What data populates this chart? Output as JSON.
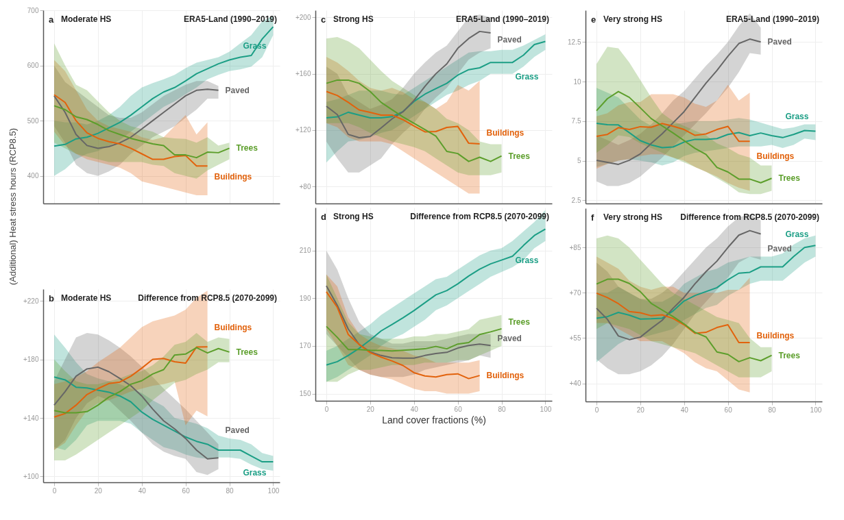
{
  "chart_data": [
    {
      "type": "line",
      "title": "Moderate HS",
      "subtitle": "ERA5-Land (1990–2019)",
      "annotations": [
        "a"
      ],
      "ylabel": "(Additional) Heat stress hours (RCP8.5)",
      "xlim": [
        -5,
        103
      ],
      "xticks": [
        0,
        20,
        40,
        60,
        80,
        100
      ],
      "ylim": [
        350,
        700
      ],
      "yticks": [
        400,
        500,
        600,
        700
      ],
      "grid": true,
      "tick_labels": "y",
      "series": [
        {
          "name": "Grass",
          "color": "#1b9e85",
          "x": [
            0,
            5,
            10,
            15,
            20,
            25,
            30,
            35,
            40,
            45,
            50,
            55,
            60,
            65,
            70,
            75,
            80,
            85,
            90,
            95,
            100
          ],
          "values": [
            454,
            457,
            467,
            470,
            477,
            487,
            497,
            510,
            525,
            540,
            552,
            560,
            572,
            585,
            594,
            603,
            610,
            615,
            618,
            648,
            670
          ],
          "lower": [
            400,
            412,
            430,
            440,
            445,
            455,
            465,
            480,
            495,
            510,
            525,
            535,
            548,
            560,
            575,
            583,
            590,
            593,
            598,
            615,
            655
          ],
          "upper": [
            500,
            497,
            497,
            493,
            500,
            510,
            525,
            545,
            560,
            568,
            575,
            583,
            595,
            605,
            610,
            615,
            625,
            640,
            655,
            680,
            690
          ]
        },
        {
          "name": "Paved",
          "color": "#666666",
          "x": [
            0,
            5,
            10,
            15,
            20,
            25,
            30,
            35,
            40,
            45,
            50,
            55,
            60,
            65,
            70,
            75
          ],
          "values": [
            545,
            515,
            475,
            455,
            450,
            453,
            460,
            470,
            485,
            500,
            515,
            530,
            545,
            555,
            557,
            555
          ],
          "lower": [
            490,
            460,
            420,
            405,
            400,
            408,
            420,
            440,
            455,
            470,
            480,
            490,
            505,
            520,
            540,
            540
          ],
          "upper": [
            600,
            570,
            555,
            540,
            525,
            510,
            505,
            505,
            515,
            530,
            545,
            555,
            565,
            572,
            572,
            563
          ]
        },
        {
          "name": "Buildings",
          "color": "#e2620c",
          "x": [
            0,
            5,
            10,
            15,
            20,
            25,
            30,
            35,
            40,
            45,
            50,
            55,
            60,
            65,
            70
          ],
          "values": [
            547,
            533,
            500,
            478,
            468,
            462,
            458,
            450,
            440,
            430,
            430,
            435,
            437,
            418,
            418
          ],
          "lower": [
            480,
            455,
            440,
            430,
            425,
            420,
            415,
            405,
            390,
            385,
            380,
            375,
            370,
            365,
            365
          ],
          "upper": [
            610,
            590,
            555,
            520,
            500,
            490,
            485,
            480,
            470,
            465,
            470,
            490,
            510,
            475,
            497
          ]
        },
        {
          "name": "Trees",
          "color": "#5c9e2b",
          "x": [
            0,
            5,
            10,
            15,
            20,
            25,
            30,
            35,
            40,
            45,
            50,
            55,
            60,
            65,
            70,
            75,
            80
          ],
          "values": [
            527,
            520,
            507,
            502,
            493,
            482,
            475,
            468,
            463,
            458,
            455,
            438,
            438,
            433,
            443,
            442,
            450
          ],
          "lower": [
            460,
            450,
            440,
            435,
            430,
            425,
            425,
            425,
            425,
            420,
            418,
            405,
            400,
            395,
            410,
            420,
            430
          ],
          "upper": [
            640,
            600,
            565,
            555,
            535,
            515,
            500,
            490,
            485,
            480,
            470,
            468,
            467,
            460,
            470,
            455,
            460
          ]
        }
      ]
    },
    {
      "type": "line",
      "title": "Moderate HS",
      "subtitle": "Difference from RCP8.5 (2070-2099)",
      "annotations": [
        "b"
      ],
      "xlim": [
        -5,
        103
      ],
      "xticks": [
        0,
        20,
        40,
        60,
        80,
        100
      ],
      "ylim": [
        96,
        228
      ],
      "yticks": [
        {
          "value": 100,
          "label": "+100"
        },
        {
          "value": 140,
          "label": "+140"
        },
        {
          "value": 180,
          "label": "+180"
        },
        {
          "value": 220,
          "label": "+220"
        }
      ],
      "grid": true,
      "series": [
        {
          "name": "Grass",
          "color": "#1b9e85",
          "x": [
            0,
            5,
            10,
            15,
            20,
            25,
            30,
            35,
            40,
            45,
            50,
            55,
            60,
            65,
            70,
            75,
            80,
            85,
            90,
            95,
            100
          ],
          "values": [
            168,
            166,
            161,
            160.5,
            159,
            157.6,
            155,
            151,
            144,
            139,
            135,
            131,
            127,
            124,
            122,
            118,
            118,
            118,
            114,
            110,
            110
          ],
          "lower": [
            120,
            118,
            125,
            135,
            138,
            138,
            138,
            136,
            130,
            125,
            120,
            118,
            115,
            113,
            112,
            113,
            113,
            112,
            108,
            105,
            104
          ],
          "upper": [
            197,
            188,
            178,
            170,
            167,
            165,
            163,
            160,
            157,
            152,
            148,
            140,
            138,
            136,
            133,
            128,
            126,
            125,
            122,
            116,
            114
          ]
        },
        {
          "name": "Paved",
          "color": "#666666",
          "x": [
            0,
            5,
            10,
            15,
            20,
            25,
            30,
            35,
            40,
            45,
            50,
            55,
            60,
            65,
            70,
            75
          ],
          "values": [
            148.7,
            158,
            168.5,
            173.5,
            174.7,
            171.6,
            167,
            162,
            155,
            146,
            138,
            132.5,
            126,
            118,
            112,
            112.7
          ],
          "lower": [
            118,
            125,
            140,
            150,
            155,
            152,
            145,
            138,
            130,
            122,
            117,
            114,
            112,
            103,
            101,
            105
          ],
          "upper": [
            165,
            180,
            195,
            198,
            197,
            193,
            188,
            182,
            175,
            168,
            160,
            153,
            146,
            138,
            130,
            122
          ]
        },
        {
          "name": "Buildings",
          "color": "#e2620c",
          "x": [
            0,
            5,
            10,
            15,
            20,
            25,
            30,
            35,
            40,
            45,
            50,
            55,
            60,
            65,
            70
          ],
          "values": [
            140.6,
            143,
            148.7,
            156,
            160,
            163.5,
            164.5,
            168.5,
            174,
            180,
            180.6,
            178.4,
            177.4,
            188.4,
            188.6
          ],
          "lower": [
            118,
            123,
            135,
            145,
            150,
            152,
            155,
            158,
            160,
            162,
            163,
            165,
            135,
            145,
            141
          ],
          "upper": [
            163,
            165,
            168,
            172,
            178,
            183,
            188,
            195,
            202,
            206,
            208,
            210,
            214,
            222,
            227
          ]
        },
        {
          "name": "Trees",
          "color": "#5c9e2b",
          "x": [
            0,
            5,
            10,
            15,
            20,
            25,
            30,
            35,
            40,
            45,
            50,
            55,
            60,
            65,
            70,
            75,
            80
          ],
          "values": [
            145,
            143.5,
            143.5,
            144.3,
            148.7,
            154.2,
            158,
            163,
            165.4,
            170,
            173,
            183,
            183.6,
            188,
            184.4,
            187.4,
            185
          ],
          "lower": [
            111,
            111,
            115,
            120,
            125,
            130,
            135,
            140,
            145,
            152,
            158,
            164,
            166,
            170,
            173,
            178,
            178
          ],
          "upper": [
            180,
            172,
            165,
            163,
            163,
            165,
            167,
            170,
            172,
            176,
            182,
            190,
            192,
            198,
            192,
            195,
            194
          ]
        }
      ]
    },
    {
      "type": "line",
      "title": "Strong HS",
      "subtitle": "ERA5-Land (1990–2019)",
      "annotations": [
        "c"
      ],
      "xlim": [
        -5,
        103
      ],
      "xticks": [
        0,
        20,
        40,
        60,
        80,
        100
      ],
      "ylim": [
        68,
        205
      ],
      "yticks": [
        {
          "value": 80,
          "label": "+80"
        },
        {
          "value": 120,
          "label": "+120"
        },
        {
          "value": 160,
          "label": "+160"
        },
        {
          "value": 200,
          "label": "+200"
        }
      ],
      "grid": true,
      "tick_labels": "y",
      "series": [
        {
          "name": "Grass",
          "color": "#1b9e85",
          "x": [
            0,
            5,
            10,
            15,
            20,
            25,
            30,
            35,
            40,
            45,
            50,
            55,
            60,
            65,
            70,
            75,
            80,
            85,
            90,
            95,
            100
          ],
          "values": [
            128.7,
            129.4,
            132.7,
            130.7,
            128.7,
            128.7,
            129.6,
            133.2,
            140.3,
            145.5,
            149.4,
            153.2,
            159,
            162.9,
            164.2,
            168,
            168,
            168,
            173.2,
            180.7,
            182.9
          ],
          "lower": [
            97,
            105,
            112,
            113,
            115,
            118,
            120,
            125,
            130,
            135,
            140,
            145,
            148,
            152,
            155,
            160,
            160,
            160,
            165,
            172,
            177
          ],
          "upper": [
            140,
            142,
            145,
            148,
            148,
            148,
            146,
            145,
            150,
            155,
            160,
            165,
            170,
            175,
            176,
            176,
            177,
            177,
            180,
            184,
            188
          ]
        },
        {
          "name": "Paved",
          "color": "#666666",
          "x": [
            0,
            5,
            10,
            15,
            20,
            25,
            30,
            35,
            40,
            45,
            50,
            55,
            60,
            65,
            70,
            75
          ],
          "values": [
            137,
            131,
            117,
            114.6,
            115.5,
            121.6,
            128,
            133,
            141,
            151,
            160,
            167,
            178,
            185,
            190,
            189
          ],
          "lower": [
            112,
            100,
            90,
            90,
            95,
            100,
            110,
            118,
            125,
            135,
            143,
            150,
            160,
            170,
            175,
            178
          ],
          "upper": [
            165,
            160,
            145,
            140,
            135,
            138,
            142,
            150,
            160,
            168,
            175,
            180,
            190,
            200,
            202,
            200
          ]
        },
        {
          "name": "Buildings",
          "color": "#e2620c",
          "x": [
            0,
            5,
            10,
            15,
            20,
            25,
            30,
            35,
            40,
            45,
            50,
            55,
            60,
            65,
            70
          ],
          "values": [
            147.4,
            144.6,
            139.7,
            134.3,
            132.6,
            130.7,
            130.7,
            127.4,
            123,
            118.8,
            119,
            121.9,
            122.7,
            110.7,
            110.3
          ],
          "lower": [
            125,
            122,
            115,
            112,
            112,
            112,
            110,
            105,
            100,
            95,
            90,
            85,
            80,
            75,
            75
          ],
          "upper": [
            172,
            168,
            162,
            155,
            150,
            148,
            150,
            147,
            142,
            140,
            135,
            140,
            152,
            148,
            155
          ]
        },
        {
          "name": "Trees",
          "color": "#5c9e2b",
          "x": [
            0,
            5,
            10,
            15,
            20,
            25,
            30,
            35,
            40,
            45,
            50,
            55,
            60,
            65,
            70,
            75,
            80
          ],
          "values": [
            153.2,
            155.5,
            155.5,
            153.2,
            147.4,
            139.7,
            134.5,
            129.4,
            124.9,
            120.4,
            115.8,
            104.9,
            103.4,
            97.8,
            100.8,
            97.8,
            101.7
          ],
          "lower": [
            125,
            125,
            125,
            122,
            118,
            115,
            112,
            110,
            108,
            105,
            100,
            95,
            90,
            88,
            88,
            88,
            90
          ],
          "upper": [
            185,
            186,
            183,
            178,
            170,
            162,
            155,
            150,
            145,
            140,
            135,
            128,
            125,
            120,
            112,
            110,
            110
          ]
        }
      ]
    },
    {
      "type": "line",
      "title": "Strong HS",
      "subtitle": "Difference from RCP8.5 (2070-2099)",
      "annotations": [
        "d"
      ],
      "xlabel": "Land cover fractions (%)",
      "xlim": [
        -5,
        103
      ],
      "xticks": [
        0,
        20,
        40,
        60,
        80,
        100
      ],
      "ylim": [
        147,
        228
      ],
      "yticks": [
        150,
        170,
        190,
        210
      ],
      "grid": true,
      "series": [
        {
          "name": "Grass",
          "color": "#1b9e85",
          "x": [
            0,
            5,
            10,
            15,
            20,
            25,
            30,
            35,
            40,
            45,
            50,
            55,
            60,
            65,
            70,
            75,
            80,
            85,
            90,
            95,
            100
          ],
          "values": [
            162,
            163.4,
            166,
            169,
            172.5,
            176.3,
            179,
            181.8,
            184.8,
            188.1,
            191.4,
            193.2,
            196,
            199.3,
            202.2,
            204.4,
            206,
            207.6,
            212.1,
            216.3,
            219
          ],
          "lower": [
            155,
            157,
            160,
            163,
            166,
            170,
            173,
            175,
            178,
            181,
            185,
            187,
            190,
            193,
            196,
            199,
            201,
            203,
            206,
            211,
            214
          ],
          "upper": [
            168,
            170,
            173,
            176,
            179,
            183,
            186,
            189,
            192,
            195,
            198,
            199,
            202,
            205,
            208,
            210,
            211,
            214,
            218,
            222,
            227
          ]
        },
        {
          "name": "Paved",
          "color": "#666666",
          "x": [
            0,
            5,
            10,
            15,
            20,
            25,
            30,
            35,
            40,
            45,
            50,
            55,
            60,
            65,
            70,
            75
          ],
          "values": [
            195.2,
            187,
            177.1,
            170.6,
            167.5,
            166,
            165,
            164.9,
            164.9,
            166,
            166.8,
            167.3,
            169.1,
            170.2,
            170.8,
            170.2
          ],
          "lower": [
            175,
            170,
            165,
            160,
            158,
            157,
            157,
            157,
            158,
            160,
            161,
            162,
            163,
            164,
            166,
            165
          ],
          "upper": [
            210,
            202,
            190,
            180,
            175,
            173,
            171,
            171,
            172,
            172,
            172,
            173,
            174,
            175,
            175,
            175
          ]
        },
        {
          "name": "Buildings",
          "color": "#e2620c",
          "x": [
            0,
            5,
            10,
            15,
            20,
            25,
            30,
            35,
            40,
            45,
            50,
            55,
            60,
            65,
            70
          ],
          "values": [
            192.7,
            186.2,
            174.8,
            170.6,
            167.2,
            165.3,
            163.7,
            161.8,
            158.8,
            157.4,
            157,
            158,
            158.3,
            156.3,
            157.6
          ],
          "lower": [
            177,
            170,
            162,
            160,
            158,
            157,
            156,
            154,
            152,
            151,
            151,
            150,
            150,
            150,
            151
          ],
          "upper": [
            200,
            195,
            182,
            175,
            172,
            170,
            169,
            168,
            166,
            165,
            163,
            163,
            163,
            163,
            164
          ]
        },
        {
          "name": "Trees",
          "color": "#5c9e2b",
          "x": [
            0,
            5,
            10,
            15,
            20,
            25,
            30,
            35,
            40,
            45,
            50,
            55,
            60,
            65,
            70,
            75,
            80
          ],
          "values": [
            178.2,
            173.6,
            168.5,
            168.5,
            168.2,
            168.1,
            167.9,
            168.2,
            168.5,
            168.8,
            169.8,
            168.8,
            170.8,
            171.4,
            174.8,
            175.9,
            177.2
          ],
          "lower": [
            155,
            155,
            158,
            160,
            160,
            161,
            162,
            162,
            162,
            163,
            163,
            163,
            164,
            164,
            166,
            168,
            170
          ],
          "upper": [
            200,
            190,
            180,
            175,
            174,
            173,
            173,
            173,
            174,
            174,
            175,
            175,
            176,
            177,
            181,
            182,
            183
          ]
        }
      ]
    },
    {
      "type": "line",
      "title": "Very strong HS",
      "subtitle": "ERA5-Land (1990–2019)",
      "annotations": [
        "e"
      ],
      "xlim": [
        -5,
        103
      ],
      "xticks": [
        0,
        20,
        40,
        60,
        80,
        100
      ],
      "ylim": [
        2.3,
        14.5
      ],
      "yticks": [
        2.5,
        5,
        7.5,
        10,
        12.5
      ],
      "grid": true,
      "tick_labels": "y",
      "series": [
        {
          "name": "Grass",
          "color": "#1b9e85",
          "x": [
            0,
            5,
            10,
            15,
            20,
            25,
            30,
            35,
            40,
            45,
            50,
            55,
            60,
            65,
            70,
            75,
            80,
            85,
            90,
            95,
            100
          ],
          "values": [
            7.36,
            7.28,
            7.26,
            6.77,
            6.27,
            6.0,
            5.83,
            5.87,
            6.18,
            6.35,
            6.35,
            6.4,
            6.66,
            6.78,
            6.58,
            6.75,
            6.58,
            6.46,
            6.66,
            6.91,
            6.86
          ],
          "lower": [
            4.6,
            4.8,
            5.0,
            5.1,
            5.0,
            4.9,
            4.7,
            4.9,
            5.3,
            5.5,
            5.6,
            5.7,
            5.8,
            5.9,
            5.9,
            5.9,
            6.0,
            5.8,
            6.0,
            6.4,
            6.3
          ],
          "upper": [
            9.6,
            9.3,
            9.0,
            8.3,
            7.6,
            7.2,
            7.3,
            7.3,
            7.4,
            7.5,
            7.5,
            7.5,
            7.6,
            7.7,
            7.6,
            7.4,
            7.2,
            7.0,
            7.1,
            7.3,
            7.3
          ]
        },
        {
          "name": "Paved",
          "color": "#666666",
          "x": [
            0,
            5,
            10,
            15,
            20,
            25,
            30,
            35,
            40,
            45,
            50,
            55,
            60,
            65,
            70,
            75
          ],
          "values": [
            5.03,
            4.9,
            4.77,
            5.03,
            5.43,
            6.1,
            6.7,
            7.4,
            8.1,
            9.0,
            9.9,
            10.7,
            11.6,
            12.4,
            12.68,
            12.5
          ],
          "lower": [
            3.7,
            3.4,
            3.4,
            3.6,
            4.0,
            4.6,
            5.2,
            5.9,
            6.6,
            7.3,
            8.0,
            8.8,
            9.6,
            10.6,
            11.8,
            11.7
          ],
          "upper": [
            6.6,
            6.3,
            6.0,
            6.3,
            6.7,
            7.3,
            8.0,
            8.8,
            9.4,
            10.2,
            11.0,
            11.7,
            12.5,
            13.5,
            14.3,
            13.4
          ]
        },
        {
          "name": "Buildings",
          "color": "#e2620c",
          "x": [
            0,
            5,
            10,
            15,
            20,
            25,
            30,
            35,
            40,
            45,
            50,
            55,
            60,
            65,
            70
          ],
          "values": [
            6.54,
            6.66,
            7.09,
            6.97,
            7.15,
            7.11,
            7.35,
            7.18,
            6.97,
            6.6,
            6.69,
            6.97,
            7.17,
            6.23,
            6.23
          ],
          "lower": [
            4.5,
            4.8,
            5.0,
            5.1,
            5.3,
            5.4,
            5.4,
            5.2,
            5.0,
            4.6,
            4.3,
            4.0,
            3.6,
            3.3,
            3.1
          ],
          "upper": [
            7.8,
            8.0,
            8.5,
            8.7,
            8.7,
            9.2,
            9.2,
            9.2,
            9.0,
            8.6,
            8.4,
            8.8,
            9.8,
            8.8,
            9.3
          ]
        },
        {
          "name": "Trees",
          "color": "#5c9e2b",
          "x": [
            0,
            5,
            10,
            15,
            20,
            25,
            30,
            35,
            40,
            45,
            50,
            55,
            60,
            65,
            70,
            75,
            80
          ],
          "values": [
            8.16,
            8.92,
            9.37,
            9.0,
            8.34,
            7.66,
            7.2,
            6.75,
            6.27,
            5.78,
            5.4,
            4.58,
            4.29,
            3.84,
            3.84,
            3.61,
            3.89
          ],
          "lower": [
            5.5,
            6.0,
            6.6,
            6.5,
            6.1,
            5.8,
            5.5,
            5.2,
            4.9,
            4.6,
            4.3,
            3.9,
            3.5,
            3.0,
            2.9,
            2.9,
            3.1
          ],
          "upper": [
            11.1,
            12.2,
            12.1,
            11.2,
            10.1,
            9.0,
            8.0,
            7.5,
            7.2,
            6.9,
            6.6,
            6.1,
            5.8,
            5.4,
            5.2,
            4.7,
            4.7
          ]
        }
      ]
    },
    {
      "type": "line",
      "title": "Very strong HS",
      "subtitle": "Difference from RCP8.5 (2070-2099)",
      "annotations": [
        "f"
      ],
      "xlim": [
        -5,
        103
      ],
      "xticks": [
        0,
        20,
        40,
        60,
        80,
        100
      ],
      "ylim": [
        34,
        98
      ],
      "yticks": [
        {
          "value": 40,
          "label": "+40"
        },
        {
          "value": 55,
          "label": "+55"
        },
        {
          "value": 70,
          "label": "+70"
        },
        {
          "value": 85,
          "label": "+85"
        }
      ],
      "grid": true,
      "series": [
        {
          "name": "Grass",
          "color": "#1b9e85",
          "x": [
            0,
            5,
            10,
            15,
            20,
            25,
            30,
            35,
            40,
            45,
            50,
            55,
            60,
            65,
            70,
            75,
            80,
            85,
            90,
            95,
            100
          ],
          "values": [
            61.6,
            62.1,
            63.5,
            62.6,
            61.3,
            61.4,
            61.6,
            64,
            67.3,
            69.1,
            70.4,
            71.7,
            74.3,
            76.5,
            76.8,
            78.6,
            78.6,
            78.6,
            82,
            85,
            85.7
          ],
          "lower": [
            47,
            50,
            53,
            55,
            55,
            56,
            57,
            58,
            61,
            63,
            65,
            66,
            69,
            71,
            73,
            74,
            74,
            74,
            77,
            80,
            82
          ],
          "upper": [
            70,
            70,
            72,
            70,
            68,
            67,
            67,
            69,
            73,
            75,
            77,
            78,
            80,
            81,
            82,
            82,
            82,
            83,
            86,
            88,
            89
          ]
        },
        {
          "name": "Paved",
          "color": "#666666",
          "x": [
            0,
            5,
            10,
            15,
            20,
            25,
            30,
            35,
            40,
            45,
            50,
            55,
            60,
            65,
            70,
            75
          ],
          "values": [
            64.9,
            61.2,
            55.7,
            54.5,
            55.3,
            58.2,
            60.9,
            64.9,
            68.5,
            73,
            77,
            80.5,
            85,
            89.1,
            90.6,
            89.5
          ],
          "lower": [
            48,
            45,
            43,
            43,
            44,
            46,
            49,
            53,
            58,
            63,
            67,
            71,
            75,
            80,
            82,
            81
          ],
          "upper": [
            80,
            77,
            72,
            70,
            68,
            68,
            70,
            73,
            77,
            81,
            85,
            88,
            92,
            95,
            96,
            94
          ]
        },
        {
          "name": "Buildings",
          "color": "#e2620c",
          "x": [
            0,
            5,
            10,
            15,
            20,
            25,
            30,
            35,
            40,
            45,
            50,
            55,
            60,
            65,
            70
          ],
          "values": [
            69.9,
            68.4,
            66.4,
            63.8,
            63.4,
            62.4,
            62.7,
            61.5,
            59.4,
            56.6,
            56.9,
            58.5,
            59.4,
            53.5,
            53.5
          ],
          "lower": [
            60,
            60,
            58,
            56,
            54,
            54,
            54,
            52,
            50,
            47,
            45,
            44,
            41,
            38,
            37
          ],
          "upper": [
            82,
            80,
            78,
            74,
            72,
            71,
            72,
            72,
            70,
            70,
            70,
            70,
            71,
            71,
            75
          ]
        },
        {
          "name": "Trees",
          "color": "#5c9e2b",
          "x": [
            0,
            5,
            10,
            15,
            20,
            25,
            30,
            35,
            40,
            45,
            50,
            55,
            60,
            65,
            70,
            75,
            80
          ],
          "values": [
            72.9,
            74.5,
            74.5,
            73.1,
            70.4,
            66.5,
            64.3,
            62.1,
            59.7,
            56.9,
            55.4,
            50.4,
            49.6,
            47.2,
            48.5,
            47.5,
            49.3
          ],
          "lower": [
            58,
            60,
            59,
            58,
            56,
            54,
            53,
            52,
            51,
            50,
            48,
            46,
            44,
            42,
            42,
            42,
            44
          ],
          "upper": [
            88,
            89,
            88,
            85,
            81,
            77,
            73,
            70,
            68,
            66,
            64,
            62,
            61,
            60,
            55,
            52,
            52
          ]
        }
      ]
    }
  ]
}
